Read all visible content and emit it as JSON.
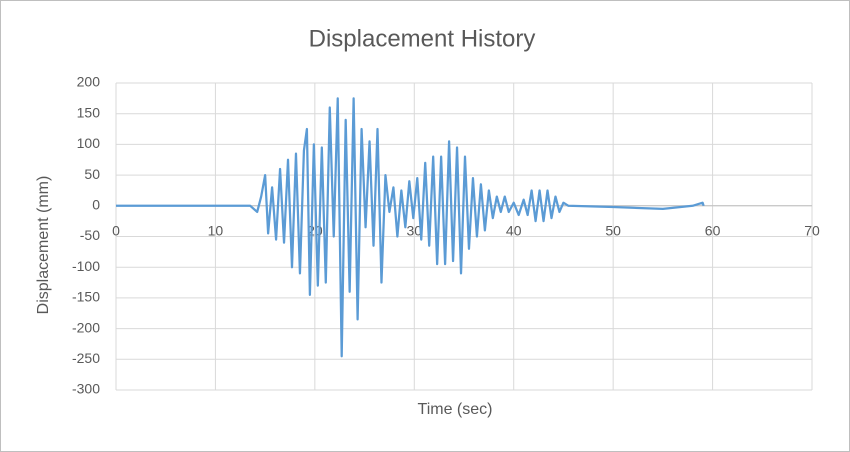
{
  "chart_data": {
    "type": "line",
    "title": "Displacement History",
    "x_label": "Time (sec)",
    "y_label": "Displacement (mm)",
    "x": [
      0,
      5,
      10,
      13.5,
      14.2,
      14.6,
      15,
      15.3,
      15.7,
      16.1,
      16.5,
      16.9,
      17.3,
      17.7,
      18.1,
      18.5,
      18.9,
      19.2,
      19.5,
      19.9,
      20.3,
      20.7,
      21.1,
      21.5,
      21.9,
      22.3,
      22.7,
      23.1,
      23.5,
      23.9,
      24.3,
      24.7,
      25.1,
      25.5,
      25.9,
      26.3,
      26.7,
      27.1,
      27.5,
      27.9,
      28.3,
      28.7,
      29.1,
      29.5,
      29.9,
      30.3,
      30.7,
      31.1,
      31.5,
      31.9,
      32.3,
      32.7,
      33.1,
      33.5,
      33.9,
      34.3,
      34.7,
      35.1,
      35.5,
      35.9,
      36.3,
      36.7,
      37.1,
      37.5,
      37.9,
      38.3,
      38.7,
      39.1,
      39.5,
      40,
      40.5,
      41,
      41.4,
      41.8,
      42.2,
      42.6,
      43,
      43.4,
      43.8,
      44.2,
      44.6,
      45,
      45.5,
      50,
      55,
      58,
      59,
      59.1
    ],
    "values": [
      0,
      0,
      0,
      0,
      -10,
      15,
      50,
      -45,
      30,
      -55,
      60,
      -60,
      75,
      -100,
      85,
      -110,
      90,
      125,
      -145,
      100,
      -130,
      95,
      -125,
      160,
      -50,
      175,
      -245,
      140,
      -140,
      175,
      -185,
      125,
      -35,
      105,
      -65,
      125,
      -125,
      50,
      -10,
      30,
      -50,
      25,
      -35,
      40,
      -20,
      45,
      -55,
      70,
      -65,
      80,
      -95,
      80,
      -95,
      105,
      -90,
      95,
      -110,
      80,
      -70,
      45,
      -50,
      35,
      -40,
      25,
      -20,
      15,
      -10,
      15,
      -10,
      5,
      -15,
      10,
      -15,
      25,
      -25,
      25,
      -25,
      25,
      -20,
      15,
      -10,
      5,
      0,
      -2,
      -5,
      0,
      5,
      0
    ],
    "color": "#5b9bd5",
    "xlim": [
      0,
      70
    ],
    "ylim": [
      -300,
      200
    ],
    "xticks": [
      0,
      10,
      20,
      30,
      40,
      50,
      60,
      70
    ],
    "yticks": [
      -300,
      -250,
      -200,
      -150,
      -100,
      -50,
      0,
      50,
      100,
      150,
      200
    ],
    "grid": true
  }
}
